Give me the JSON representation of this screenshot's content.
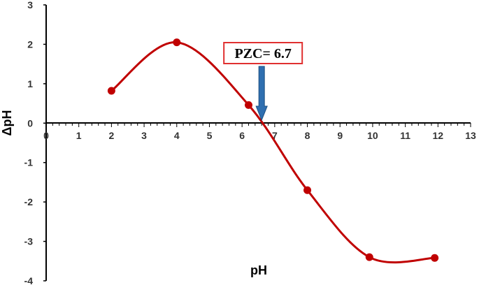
{
  "chart_data": {
    "type": "line",
    "xlabel": "pH",
    "ylabel": "ΔpH",
    "xlim": [
      0,
      13
    ],
    "ylim": [
      -4,
      3
    ],
    "x_ticks": [
      "0",
      "1",
      "2",
      "3",
      "4",
      "5",
      "6",
      "7",
      "8",
      "9",
      "10",
      "11",
      "12",
      "13"
    ],
    "y_ticks": [
      "3",
      "2",
      "1",
      "0",
      "-1",
      "-2",
      "-3",
      "-4"
    ],
    "series": [
      {
        "x": [
          2,
          4,
          6.2,
          8,
          9.9,
          11.9
        ],
        "values": [
          0.82,
          2.05,
          0.46,
          -1.7,
          -3.4,
          -3.42
        ],
        "color": "#c00000",
        "smooth": true,
        "markers": true
      }
    ],
    "annotation": {
      "text": "PZC= 6.7",
      "arrow_x": 6.6,
      "box_border_color": "#e03030",
      "arrow_color": "#2f6fb0"
    },
    "grid": false,
    "legend": "none"
  }
}
